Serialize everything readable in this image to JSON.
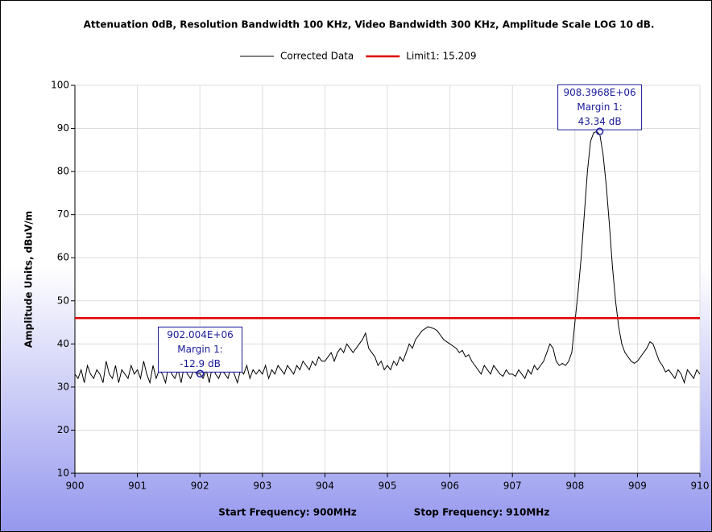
{
  "chart_data": {
    "type": "line",
    "title": "Attenuation 0dB, Resolution Bandwidth 100 KHz, Video Bandwidth 300 KHz, Amplitude Scale LOG 10 dB.",
    "y_label": "Amplitude Units, dBuV/m",
    "x_labels": [
      "Start Frequency: 900MHz",
      "Stop Frequency: 910MHz"
    ],
    "xlim": [
      900,
      910
    ],
    "ylim": [
      10,
      100
    ],
    "xticks": [
      900,
      901,
      902,
      903,
      904,
      905,
      906,
      907,
      908,
      909,
      910
    ],
    "yticks": [
      10,
      20,
      30,
      40,
      50,
      60,
      70,
      80,
      90,
      100
    ],
    "grid": true,
    "legend": "top",
    "series": [
      {
        "name": "Corrected Data",
        "color": "#000000",
        "x": [
          900,
          900.05,
          900.1,
          900.15,
          900.2,
          900.25,
          900.3,
          900.35,
          900.4,
          900.45,
          900.5,
          900.55,
          900.6,
          900.65,
          900.7,
          900.75,
          900.8,
          900.85,
          900.9,
          900.95,
          901,
          901.05,
          901.1,
          901.15,
          901.2,
          901.25,
          901.3,
          901.35,
          901.4,
          901.45,
          901.5,
          901.55,
          901.6,
          901.65,
          901.7,
          901.75,
          901.8,
          901.85,
          901.9,
          901.95,
          902,
          902.05,
          902.1,
          902.15,
          902.2,
          902.25,
          902.3,
          902.35,
          902.4,
          902.45,
          902.5,
          902.55,
          902.6,
          902.65,
          902.7,
          902.75,
          902.8,
          902.85,
          902.9,
          902.95,
          903,
          903.05,
          903.1,
          903.15,
          903.2,
          903.25,
          903.3,
          903.35,
          903.4,
          903.45,
          903.5,
          903.55,
          903.6,
          903.65,
          903.7,
          903.75,
          903.8,
          903.85,
          903.9,
          903.95,
          904,
          904.05,
          904.1,
          904.15,
          904.2,
          904.25,
          904.3,
          904.35,
          904.4,
          904.45,
          904.5,
          904.55,
          904.6,
          904.65,
          904.7,
          904.75,
          904.8,
          904.85,
          904.9,
          904.95,
          905,
          905.05,
          905.1,
          905.15,
          905.2,
          905.25,
          905.3,
          905.35,
          905.4,
          905.45,
          905.5,
          905.55,
          905.6,
          905.65,
          905.7,
          905.75,
          905.8,
          905.85,
          905.9,
          905.95,
          906,
          906.05,
          906.1,
          906.15,
          906.2,
          906.25,
          906.3,
          906.35,
          906.4,
          906.45,
          906.5,
          906.55,
          906.6,
          906.65,
          906.7,
          906.75,
          906.8,
          906.85,
          906.9,
          906.95,
          907,
          907.05,
          907.1,
          907.15,
          907.2,
          907.25,
          907.3,
          907.35,
          907.4,
          907.45,
          907.5,
          907.55,
          907.6,
          907.65,
          907.7,
          907.75,
          907.8,
          907.85,
          907.9,
          907.95,
          908,
          908.05,
          908.1,
          908.15,
          908.2,
          908.25,
          908.3,
          908.35,
          908.4,
          908.45,
          908.5,
          908.55,
          908.6,
          908.65,
          908.7,
          908.75,
          908.8,
          908.85,
          908.9,
          908.95,
          909,
          909.05,
          909.1,
          909.15,
          909.2,
          909.25,
          909.3,
          909.35,
          909.4,
          909.45,
          909.5,
          909.55,
          909.6,
          909.65,
          909.7,
          909.75,
          909.8,
          909.85,
          909.9,
          909.95,
          910
        ],
        "values": [
          33,
          32,
          34,
          31,
          35,
          33,
          32,
          34,
          33,
          31,
          36,
          33,
          32,
          35,
          31,
          34,
          33,
          32,
          35,
          33,
          34,
          32,
          36,
          33,
          31,
          35,
          32,
          34,
          33,
          31,
          35,
          33,
          32,
          34,
          31,
          35,
          33,
          32,
          34,
          33,
          33.1,
          32,
          34,
          31,
          35,
          33,
          32,
          34,
          33,
          32,
          35,
          33,
          31,
          34,
          33,
          35,
          32,
          34,
          33,
          34,
          33,
          35,
          32,
          34,
          33,
          35,
          34,
          33,
          35,
          34,
          33,
          35,
          34,
          36,
          35,
          34,
          36,
          35,
          37,
          36,
          36,
          37,
          38,
          36,
          38,
          39,
          38,
          40,
          39,
          38,
          39,
          40,
          41,
          42.5,
          39,
          38,
          37,
          35,
          36,
          34,
          35,
          34,
          36,
          35,
          37,
          36,
          38,
          40,
          39,
          41,
          42,
          43,
          43.5,
          44,
          43.8,
          43.5,
          43,
          42,
          41,
          40.5,
          40,
          39.5,
          39,
          38,
          38.5,
          37,
          37.5,
          36,
          35,
          34,
          33,
          35,
          34,
          33,
          35,
          34,
          33,
          32.5,
          34,
          33,
          33,
          32.5,
          34,
          33,
          32,
          34,
          33,
          35,
          34,
          35,
          36,
          38,
          40,
          39,
          36,
          35,
          35.5,
          35,
          36,
          38,
          45,
          52,
          60,
          70,
          80,
          87,
          89,
          89.3,
          88.5,
          84,
          77,
          68,
          58,
          50,
          44,
          40,
          38,
          37,
          36,
          35.5,
          36,
          37,
          38,
          39,
          40.5,
          40,
          38,
          36,
          35,
          33.5,
          34,
          33,
          32,
          34,
          33,
          31,
          34,
          33,
          32,
          34,
          33
        ]
      },
      {
        "name": "Limit1: 15.209",
        "color": "#e00000",
        "x": [
          900,
          910
        ],
        "values": [
          46,
          46
        ]
      }
    ],
    "annotations": [
      {
        "text": [
          "908.3968E+06",
          "Margin 1:",
          "43.34 dB"
        ],
        "x": 908.3968,
        "y": 89.3
      },
      {
        "text": [
          "902.004E+06",
          "Margin 1:",
          "-12.9 dB"
        ],
        "x": 902.004,
        "y": 33.1
      }
    ]
  }
}
